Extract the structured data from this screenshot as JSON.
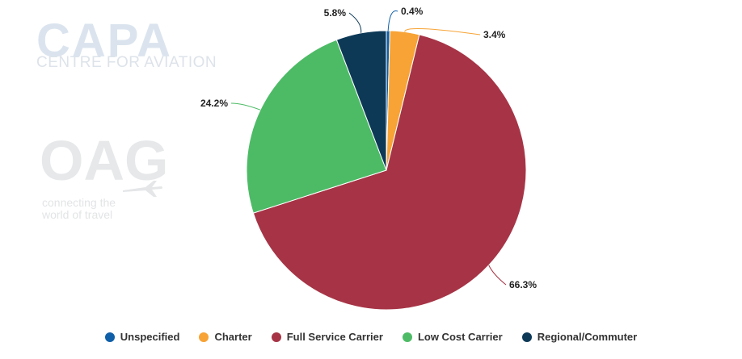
{
  "watermarks": {
    "capa_logo": "CAPA",
    "capa_subtitle": "CENTRE FOR AVIATION",
    "oag_logo": "OAG",
    "oag_tagline_1": "connecting the",
    "oag_tagline_2": "world of travel"
  },
  "chart_data": {
    "type": "pie",
    "title": "",
    "categories": [
      "Unspecified",
      "Charter",
      "Full Service Carrier",
      "Low Cost Carrier",
      "Regional/Commuter"
    ],
    "values": [
      0.4,
      3.4,
      66.3,
      24.2,
      5.8
    ],
    "labels": [
      "0.4%",
      "3.4%",
      "66.3%",
      "24.2%",
      "5.8%"
    ],
    "colors": [
      "#0f5fa8",
      "#f7a335",
      "#a63446",
      "#4dbb66",
      "#0d3957"
    ],
    "legend_position": "bottom"
  }
}
